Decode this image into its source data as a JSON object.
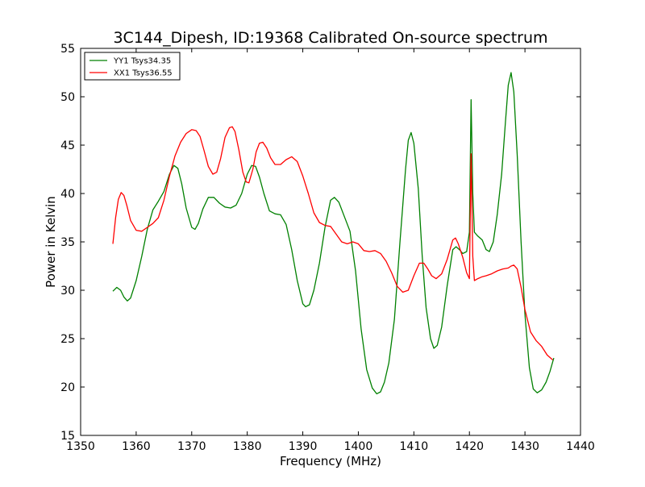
{
  "chart_data": {
    "type": "line",
    "title": "3C144_Dipesh, ID:19368 Calibrated On-source spectrum",
    "xlabel": "Frequency (MHz)",
    "ylabel": "Power in Kelvin",
    "xlim": [
      1350,
      1440
    ],
    "ylim": [
      15,
      55
    ],
    "xticks": [
      1350,
      1360,
      1370,
      1380,
      1390,
      1400,
      1410,
      1420,
      1430,
      1440
    ],
    "yticks": [
      15,
      20,
      25,
      30,
      35,
      40,
      45,
      50,
      55
    ],
    "grid": false,
    "legend_position": "top-left",
    "series": [
      {
        "name": "YY1 Tsys34.35",
        "color": "#008000",
        "x": [
          1355.8,
          1356.5,
          1357.2,
          1357.8,
          1358.4,
          1359.0,
          1360.0,
          1361.0,
          1362.0,
          1363.0,
          1364.0,
          1365.0,
          1366.0,
          1366.8,
          1367.5,
          1368.2,
          1369.0,
          1370.0,
          1370.6,
          1371.2,
          1372.0,
          1373.0,
          1374.0,
          1375.0,
          1376.0,
          1377.0,
          1378.0,
          1379.0,
          1380.0,
          1380.8,
          1381.5,
          1382.2,
          1383.0,
          1384.0,
          1385.0,
          1386.0,
          1387.0,
          1388.0,
          1389.0,
          1390.0,
          1390.5,
          1391.2,
          1392.0,
          1393.0,
          1394.0,
          1395.0,
          1395.7,
          1396.5,
          1397.5,
          1398.5,
          1399.5,
          1400.5,
          1401.5,
          1402.5,
          1403.3,
          1404.0,
          1404.7,
          1405.5,
          1406.5,
          1407.5,
          1408.5,
          1409.0,
          1409.5,
          1410.0,
          1410.8,
          1411.5,
          1412.2,
          1413.0,
          1413.6,
          1414.2,
          1415.0,
          1416.0,
          1417.0,
          1417.6,
          1418.2,
          1418.8,
          1419.5,
          1420.0,
          1420.3,
          1420.6,
          1420.9,
          1421.5,
          1422.3,
          1423.0,
          1423.6,
          1424.3,
          1425.0,
          1425.8,
          1426.5,
          1427.0,
          1427.5,
          1428.0,
          1428.6,
          1429.3,
          1430.0,
          1430.8,
          1431.5,
          1432.2,
          1433.0,
          1433.8,
          1434.5,
          1435.2
        ],
        "values": [
          29.9,
          30.3,
          30.0,
          29.3,
          28.9,
          29.2,
          31.0,
          33.5,
          36.3,
          38.3,
          39.2,
          40.2,
          42.0,
          42.9,
          42.6,
          41.0,
          38.5,
          36.5,
          36.3,
          36.9,
          38.4,
          39.6,
          39.6,
          39.0,
          38.6,
          38.5,
          38.8,
          40.0,
          42.0,
          42.9,
          42.8,
          41.7,
          40.0,
          38.2,
          37.9,
          37.8,
          36.8,
          34.2,
          31.0,
          28.6,
          28.3,
          28.5,
          30.0,
          32.8,
          36.5,
          39.3,
          39.6,
          39.1,
          37.6,
          36.1,
          32.0,
          26.0,
          21.8,
          19.9,
          19.3,
          19.5,
          20.5,
          22.5,
          27.0,
          35.0,
          42.5,
          45.5,
          46.3,
          45.2,
          40.5,
          33.5,
          28.2,
          25.0,
          24.0,
          24.3,
          26.2,
          30.5,
          34.2,
          34.5,
          34.2,
          33.8,
          34.0,
          36.0,
          49.7,
          40.0,
          36.0,
          35.6,
          35.2,
          34.2,
          34.0,
          35.0,
          37.8,
          42.0,
          47.5,
          51.2,
          52.5,
          50.5,
          44.0,
          35.0,
          27.5,
          22.0,
          19.8,
          19.4,
          19.7,
          20.5,
          21.6,
          23.0
        ]
      },
      {
        "name": "XX1 Tsys36.55",
        "color": "#ff0000",
        "x": [
          1355.8,
          1356.3,
          1356.8,
          1357.3,
          1357.8,
          1358.3,
          1359.0,
          1360.0,
          1361.0,
          1362.0,
          1363.0,
          1364.0,
          1365.0,
          1366.0,
          1367.0,
          1368.0,
          1369.0,
          1370.0,
          1370.8,
          1371.5,
          1372.2,
          1373.0,
          1373.8,
          1374.5,
          1375.2,
          1376.0,
          1376.8,
          1377.3,
          1377.8,
          1378.5,
          1379.2,
          1379.8,
          1380.3,
          1381.0,
          1381.6,
          1382.2,
          1382.8,
          1383.5,
          1384.2,
          1385.0,
          1386.0,
          1387.0,
          1388.0,
          1389.0,
          1390.0,
          1391.0,
          1392.0,
          1393.0,
          1394.0,
          1395.0,
          1396.0,
          1397.0,
          1398.0,
          1399.0,
          1400.0,
          1401.0,
          1402.0,
          1403.0,
          1404.0,
          1405.0,
          1406.0,
          1407.0,
          1408.0,
          1409.0,
          1410.0,
          1411.0,
          1411.8,
          1412.5,
          1413.2,
          1414.0,
          1415.0,
          1416.0,
          1417.0,
          1417.5,
          1418.0,
          1418.8,
          1419.5,
          1420.0,
          1420.3,
          1420.6,
          1420.9,
          1421.5,
          1422.3,
          1423.0,
          1424.0,
          1425.0,
          1426.0,
          1427.0,
          1427.5,
          1428.0,
          1428.6,
          1429.3,
          1430.0,
          1431.0,
          1432.0,
          1433.0,
          1434.0,
          1435.0
        ],
        "values": [
          34.8,
          37.5,
          39.4,
          40.1,
          39.8,
          38.8,
          37.2,
          36.2,
          36.1,
          36.5,
          36.9,
          37.5,
          39.3,
          41.8,
          43.9,
          45.3,
          46.2,
          46.6,
          46.5,
          45.9,
          44.5,
          42.8,
          42.0,
          42.2,
          43.6,
          45.8,
          46.8,
          46.9,
          46.4,
          44.5,
          42.2,
          41.2,
          41.1,
          42.5,
          44.3,
          45.2,
          45.3,
          44.7,
          43.7,
          43.0,
          43.0,
          43.5,
          43.8,
          43.3,
          41.8,
          40.0,
          38.0,
          37.0,
          36.7,
          36.6,
          35.8,
          35.0,
          34.8,
          35.0,
          34.8,
          34.1,
          34.0,
          34.1,
          33.8,
          33.0,
          31.8,
          30.4,
          29.8,
          30.0,
          31.5,
          32.8,
          32.8,
          32.2,
          31.5,
          31.2,
          31.7,
          33.2,
          35.2,
          35.4,
          34.8,
          33.4,
          31.8,
          31.2,
          44.1,
          33.5,
          31.0,
          31.2,
          31.4,
          31.5,
          31.7,
          32.0,
          32.2,
          32.3,
          32.5,
          32.6,
          32.2,
          30.3,
          28.0,
          25.7,
          24.8,
          24.2,
          23.3,
          22.8
        ]
      }
    ]
  }
}
